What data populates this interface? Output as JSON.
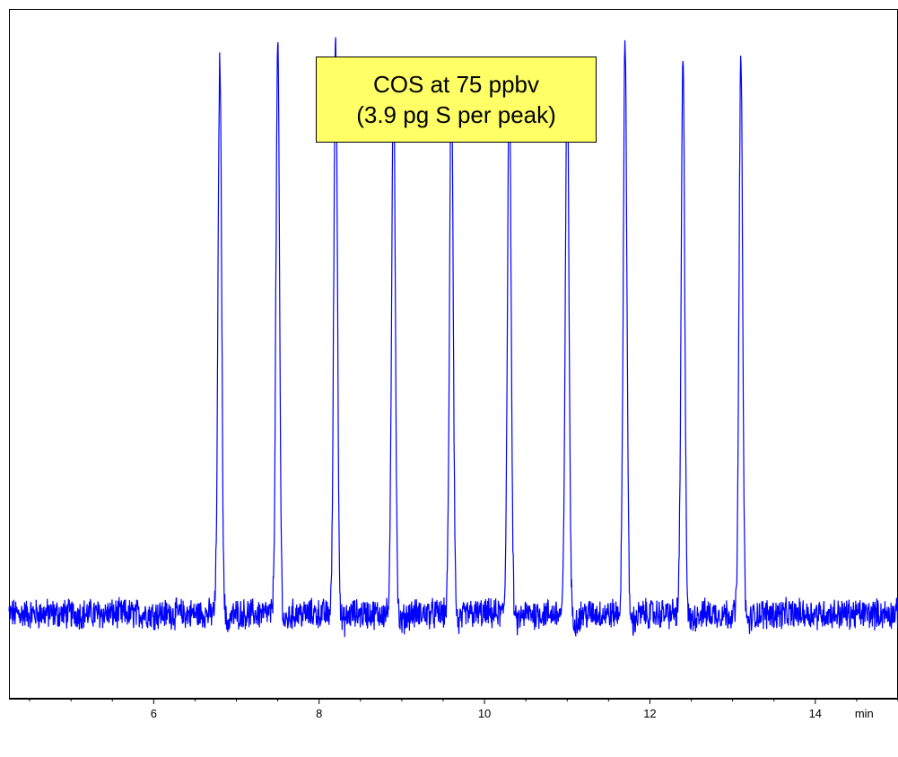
{
  "chart_data": {
    "type": "line",
    "title": "",
    "xlabel": "",
    "ylabel": "",
    "x_unit_label": "min",
    "xlim": [
      4.25,
      15.0
    ],
    "ylim": [
      -1.0,
      12.0
    ],
    "x_ticks": [
      6,
      8,
      10,
      12,
      14
    ],
    "x_tick_labels": [
      "6",
      "8",
      "10",
      "12",
      "14"
    ],
    "grid": false,
    "legend": "none",
    "series": [
      {
        "color": "#0000ff",
        "baseline": 0.6,
        "noise_amplitude": 0.25,
        "peak_width": 0.05,
        "peaks": [
          {
            "x": 6.8,
            "height": 11.1
          },
          {
            "x": 7.5,
            "height": 11.3
          },
          {
            "x": 8.2,
            "height": 11.5
          },
          {
            "x": 8.9,
            "height": 10.9
          },
          {
            "x": 9.6,
            "height": 10.95
          },
          {
            "x": 10.3,
            "height": 10.9
          },
          {
            "x": 11.0,
            "height": 11.0
          },
          {
            "x": 11.7,
            "height": 11.45
          },
          {
            "x": 12.4,
            "height": 11.0
          },
          {
            "x": 13.1,
            "height": 11.1
          }
        ]
      }
    ],
    "annotation": {
      "lines": [
        "COS at 75 ppbv",
        "(3.9 pg S per peak)"
      ],
      "background": "#ffff66"
    }
  }
}
